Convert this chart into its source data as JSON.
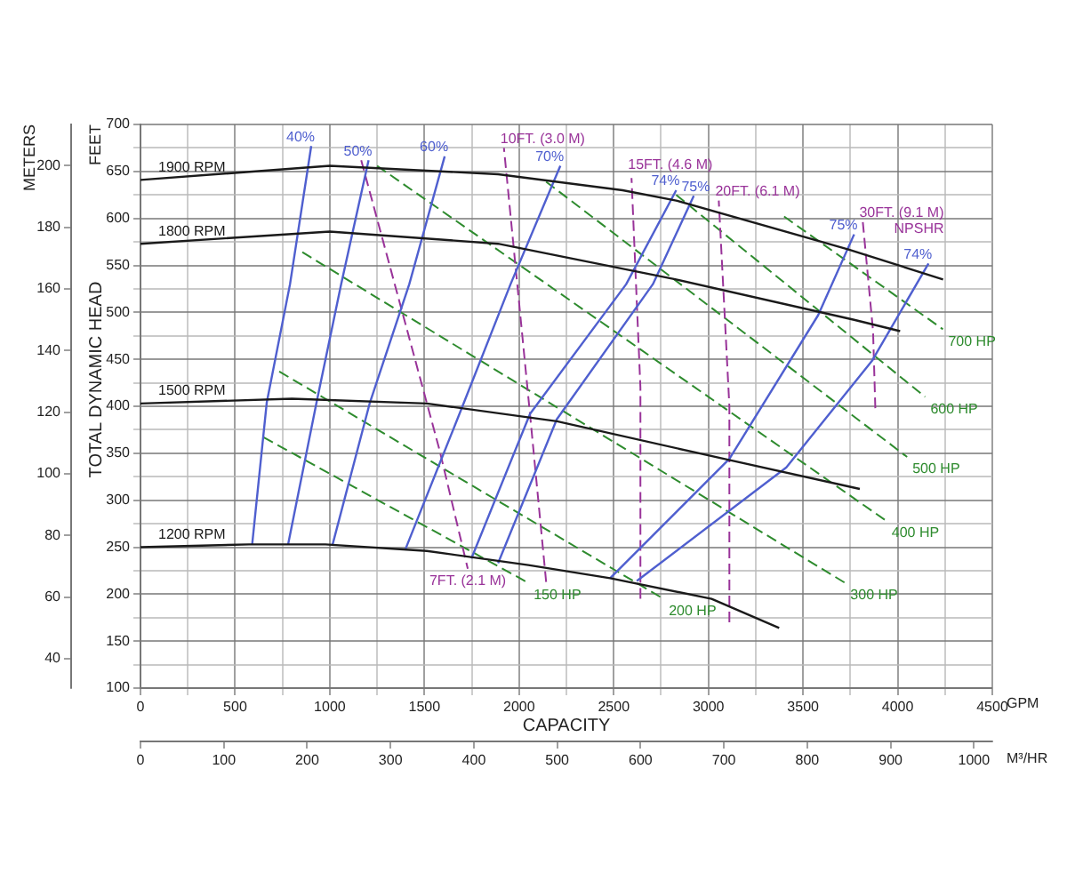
{
  "chart_data": {
    "type": "line",
    "xlabel": "CAPACITY",
    "ylabel": "TOTAL DYNAMIC HEAD",
    "y2label": "METERS",
    "x2label": "M³/HR",
    "annotations": [
      "FEET",
      "GPM",
      "NPSHR"
    ],
    "xlim": [
      0,
      4500
    ],
    "xticks": [
      0,
      {
        "value": 250,
        "label": null
      },
      500,
      {
        "value": 750,
        "label": null
      },
      1000,
      {
        "value": 1250,
        "label": null
      },
      1500,
      {
        "value": 1750,
        "label": null
      },
      2000,
      {
        "value": 2250,
        "label": null
      },
      2500,
      {
        "value": 2750,
        "label": null
      },
      3000,
      {
        "value": 3250,
        "label": null
      },
      3500,
      {
        "value": 3750,
        "label": null
      },
      4000,
      {
        "value": 4250,
        "label": null
      },
      4500
    ],
    "ylim": [
      100,
      700
    ],
    "yticks": [
      100,
      {
        "value": 125,
        "label": null
      },
      150,
      {
        "value": 175,
        "label": null
      },
      200,
      {
        "value": 225,
        "label": null
      },
      250,
      {
        "value": 275,
        "label": null
      },
      300,
      {
        "value": 325,
        "label": null
      },
      350,
      {
        "value": 375,
        "label": null
      },
      400,
      {
        "value": 425,
        "label": null
      },
      450,
      {
        "value": 475,
        "label": null
      },
      500,
      {
        "value": 525,
        "label": null
      },
      550,
      {
        "value": 575,
        "label": null
      },
      600,
      {
        "value": 625,
        "label": null
      },
      650,
      {
        "value": 675,
        "label": null
      },
      700
    ],
    "x2lim": [
      0,
      1022.05
    ],
    "x2ticks": [
      0,
      100,
      200,
      300,
      400,
      500,
      600,
      700,
      800,
      900,
      1000
    ],
    "y2lim": [
      30.48,
      213.36
    ],
    "y2ticks": [
      40,
      60,
      80,
      100,
      120,
      140,
      160,
      180,
      200
    ],
    "grid": true,
    "legend": false,
    "marker": "none",
    "series": [
      {
        "name": "1900 RPM",
        "color": "#1a1a1a",
        "x": [
          4240,
          3740,
          2830,
          2547,
          1889,
          1000,
          0
        ],
        "values": [
          535,
          567,
          619,
          630,
          647,
          656,
          641
        ]
      },
      {
        "name": "1800 RPM",
        "color": "#1a1a1a",
        "x": [
          4013,
          3770,
          2830,
          1889,
          1000,
          0
        ],
        "values": [
          480,
          492,
          535,
          573,
          586,
          573
        ]
      },
      {
        "name": "1500 RPM",
        "color": "#1a1a1a",
        "x": [
          3800,
          3083,
          2200,
          1513,
          800,
          0
        ],
        "values": [
          312,
          344,
          384,
          403,
          408,
          403
        ]
      },
      {
        "name": "1200 RPM",
        "color": "#1a1a1a",
        "x": [
          3374,
          3017,
          2481,
          2049,
          1513,
          977,
          573,
          0
        ],
        "values": [
          164,
          195,
          217,
          231,
          246,
          253,
          253,
          250
        ]
      },
      {
        "name": "40%",
        "color": "#4f5fcf",
        "x": [
          590,
          667,
          790,
          902
        ],
        "values": [
          253,
          404,
          530,
          677
        ]
      },
      {
        "name": "50%",
        "color": "#4f5fcf",
        "x": [
          780,
          930,
          1060,
          1205
        ],
        "values": [
          253,
          404,
          530,
          662
        ]
      },
      {
        "name": "60%",
        "color": "#4f5fcf",
        "x": [
          1015,
          1212,
          1420,
          1607
        ],
        "values": [
          253,
          404,
          530,
          666
        ]
      },
      {
        "name": "70%",
        "color": "#4f5fcf",
        "x": [
          1400,
          1701,
          1955,
          2218
        ],
        "values": [
          248,
          400,
          530,
          656
        ]
      },
      {
        "name": "74%",
        "color": "#4f5fcf",
        "x": [
          1748,
          2058,
          2566,
          2830
        ],
        "values": [
          238,
          392,
          530,
          630
        ]
      },
      {
        "name": "75%",
        "color": "#4f5fcf",
        "x": [
          1889,
          2199,
          2707,
          2923
        ],
        "values": [
          233,
          386,
          530,
          624
        ]
      },
      {
        "name": "75%",
        "color": "#4f5fcf",
        "x": [
          2481,
          3111,
          3580,
          3770
        ],
        "values": [
          217,
          344,
          497,
          583
        ]
      },
      {
        "name": "74%",
        "color": "#4f5fcf",
        "x": [
          2622,
          3412,
          3863,
          4163
        ],
        "values": [
          214,
          335,
          448,
          552
        ]
      },
      {
        "name": "7FT. (2.1 M)",
        "color": "#993399",
        "line_style": "dashed",
        "x": [
          1166,
          1579,
          1729
        ],
        "values": [
          662,
          354,
          227
        ]
      },
      {
        "name": "10FT. (3.0 M)",
        "color": "#993399",
        "line_style": "dashed",
        "x": [
          2143,
          2058,
          1920
        ],
        "values": [
          213,
          391,
          675
        ]
      },
      {
        "name": "15FT. (4.6 M)",
        "color": "#993399",
        "line_style": "dashed",
        "x": [
          2641,
          2641,
          2594
        ],
        "values": [
          195,
          420,
          643
        ]
      },
      {
        "name": "20FT. (6.1 M)",
        "color": "#993399",
        "line_style": "dashed",
        "x": [
          3111,
          3111,
          3055
        ],
        "values": [
          170,
          400,
          619
        ]
      },
      {
        "name": "30FT. (9.1 M)",
        "color": "#993399",
        "line_style": "dashed",
        "x": [
          3882,
          3870,
          3816
        ],
        "values": [
          398,
          480,
          596
        ]
      },
      {
        "name": "150 HP",
        "color": "#2e8b2e",
        "line_style": "dashed",
        "x": [
          650,
          2049
        ],
        "values": [
          367,
          212
        ]
      },
      {
        "name": "200 HP",
        "color": "#2e8b2e",
        "line_style": "dashed",
        "x": [
          733,
          2763
        ],
        "values": [
          437,
          195
        ]
      },
      {
        "name": "300 HP",
        "color": "#2e8b2e",
        "line_style": "dashed",
        "x": [
          855,
          3722
        ],
        "values": [
          564,
          212
        ]
      },
      {
        "name": "400 HP",
        "color": "#2e8b2e",
        "line_style": "dashed",
        "x": [
          1250,
          3940
        ],
        "values": [
          656,
          278
        ]
      },
      {
        "name": "500 HP",
        "color": "#2e8b2e",
        "line_style": "dashed",
        "x": [
          2143,
          4050
        ],
        "values": [
          639,
          346
        ]
      },
      {
        "name": "600 HP",
        "color": "#2e8b2e",
        "line_style": "dashed",
        "x": [
          2830,
          4145
        ],
        "values": [
          625,
          410
        ]
      },
      {
        "name": "700 HP",
        "color": "#2e8b2e",
        "line_style": "dashed",
        "x": [
          3400,
          4239
        ],
        "values": [
          602,
          482
        ]
      }
    ]
  }
}
